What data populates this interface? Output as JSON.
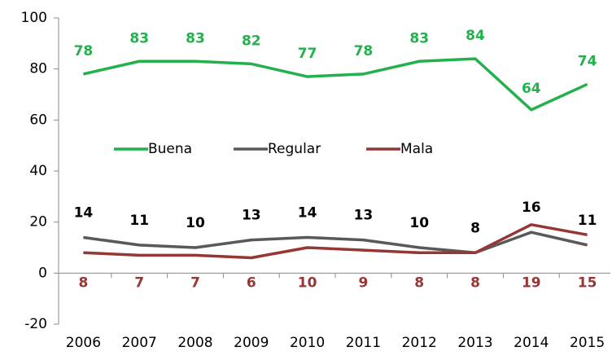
{
  "chart_data": {
    "type": "line",
    "categories": [
      "2006",
      "2007",
      "2008",
      "2009",
      "2010",
      "2011",
      "2012",
      "2013",
      "2014",
      "2015"
    ],
    "series": [
      {
        "name": "Buena",
        "color": "#22b14c",
        "values": [
          78,
          83,
          83,
          82,
          77,
          78,
          83,
          84,
          64,
          74
        ]
      },
      {
        "name": "Regular",
        "color": "#595959",
        "values": [
          14,
          11,
          10,
          13,
          14,
          13,
          10,
          8,
          16,
          11
        ]
      },
      {
        "name": "Mala",
        "color": "#953735",
        "values": [
          8,
          7,
          7,
          6,
          10,
          9,
          8,
          8,
          19,
          15
        ]
      }
    ],
    "ylim": [
      -20,
      100
    ],
    "yticks": [
      -20,
      0,
      20,
      40,
      60,
      80,
      100
    ],
    "legend": "center"
  }
}
